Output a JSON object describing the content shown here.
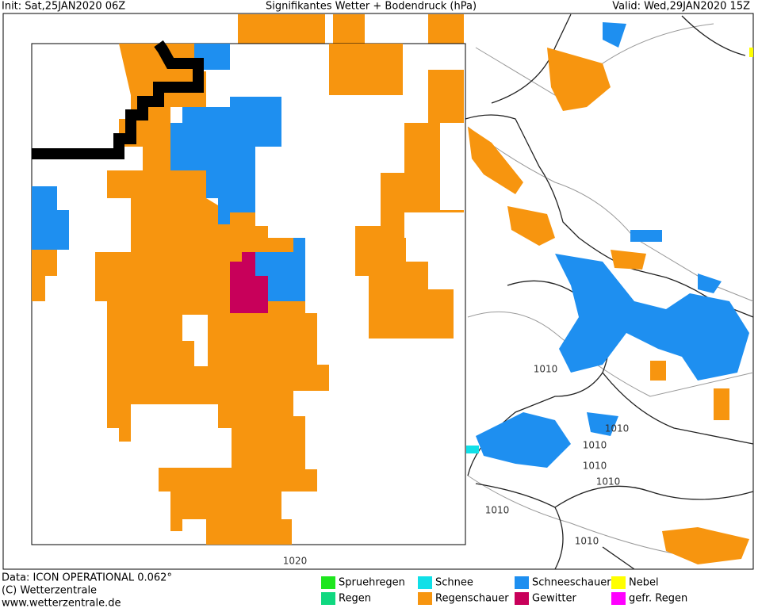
{
  "header": {
    "init": "Init: Sat,25JAN2020 06Z",
    "title": "Signifikantes Wetter +  Bodendruck (hPa)",
    "valid": "Valid: Wed,29JAN2020 15Z"
  },
  "footer": {
    "source": "Data: ICON OPERATIONAL 0.062°",
    "copyright": "(C) Wetterzentrale",
    "url": "www.wetterzentrale.de"
  },
  "legend": [
    {
      "label": "Spruehregen",
      "color": "#1ee61e"
    },
    {
      "label": "Schnee",
      "color": "#10e0e8"
    },
    {
      "label": "Schneeschauer",
      "color": "#1e8ff0"
    },
    {
      "label": "Nebel",
      "color": "#ffff00"
    },
    {
      "label": "Regen",
      "color": "#10d880"
    },
    {
      "label": "Regenschauer",
      "color": "#f7950f"
    },
    {
      "label": "Gewitter",
      "color": "#c8005a"
    },
    {
      "label": "gefr. Regen",
      "color": "#ff00ff"
    }
  ],
  "isobar_labels": [
    "1010",
    "1010",
    "1010",
    "1010",
    "1010",
    "1010",
    "1010",
    "1020"
  ]
}
